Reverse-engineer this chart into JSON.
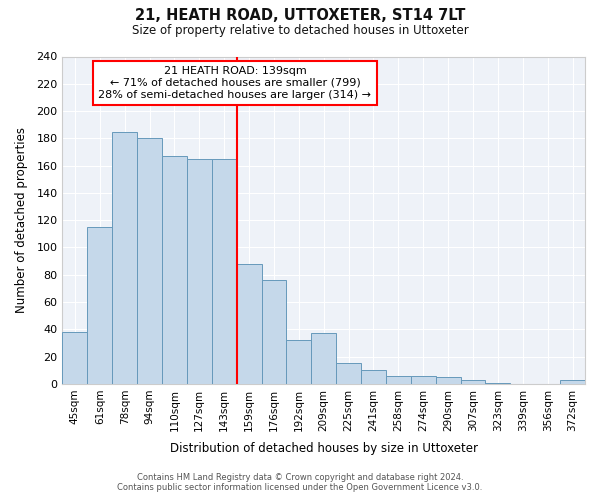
{
  "title": "21, HEATH ROAD, UTTOXETER, ST14 7LT",
  "subtitle": "Size of property relative to detached houses in Uttoxeter",
  "xlabel": "Distribution of detached houses by size in Uttoxeter",
  "ylabel": "Number of detached properties",
  "categories": [
    "45sqm",
    "61sqm",
    "78sqm",
    "94sqm",
    "110sqm",
    "127sqm",
    "143sqm",
    "159sqm",
    "176sqm",
    "192sqm",
    "209sqm",
    "225sqm",
    "241sqm",
    "258sqm",
    "274sqm",
    "290sqm",
    "307sqm",
    "323sqm",
    "339sqm",
    "356sqm",
    "372sqm"
  ],
  "values": [
    38,
    115,
    185,
    180,
    167,
    165,
    165,
    88,
    76,
    32,
    37,
    15,
    10,
    6,
    6,
    5,
    3,
    1,
    0,
    0,
    3
  ],
  "bar_color": "#c5d8ea",
  "bar_edge_color": "#6699bb",
  "redline_index": 6,
  "redline_label": "21 HEATH ROAD: 139sqm",
  "annotation_line1": "← 71% of detached houses are smaller (799)",
  "annotation_line2": "28% of semi-detached houses are larger (314) →",
  "ylim": [
    0,
    240
  ],
  "yticks": [
    0,
    20,
    40,
    60,
    80,
    100,
    120,
    140,
    160,
    180,
    200,
    220,
    240
  ],
  "background_color": "#ffffff",
  "plot_background": "#eef2f8",
  "grid_color": "#ffffff",
  "footer_line1": "Contains HM Land Registry data © Crown copyright and database right 2024.",
  "footer_line2": "Contains public sector information licensed under the Open Government Licence v3.0."
}
